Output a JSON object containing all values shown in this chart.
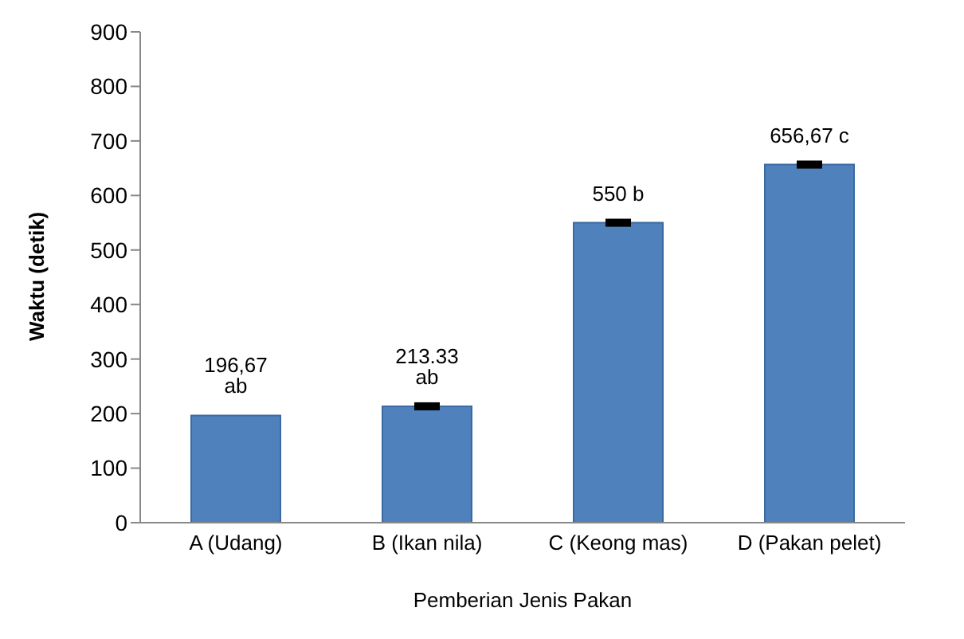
{
  "chart_data": {
    "type": "bar",
    "xlabel": "Pemberian Jenis Pakan",
    "ylabel": "Waktu (detik)",
    "categories": [
      "A (Udang)",
      "B (Ikan nila)",
      "C (Keong mas)",
      "D (Pakan pelet)"
    ],
    "values": [
      196.67,
      213.33,
      550,
      656.67
    ],
    "errors": [
      null,
      3,
      3,
      3
    ],
    "value_labels": [
      "196,67 ab",
      "213.33 ab",
      "550 b",
      "656,67 c"
    ],
    "color": "#4f81bd",
    "ylim": [
      0,
      900
    ],
    "yticks": [
      0,
      100,
      200,
      300,
      400,
      500,
      600,
      700,
      800,
      900
    ],
    "grid": false,
    "legend": false
  }
}
